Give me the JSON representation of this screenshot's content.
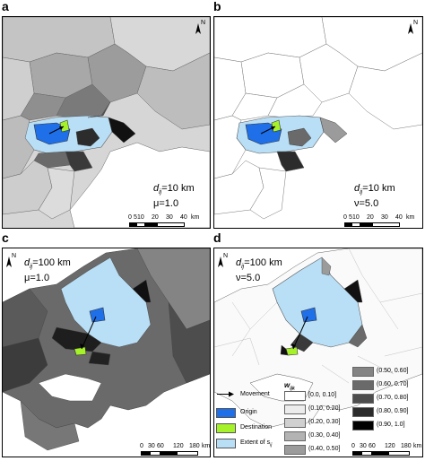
{
  "panels": [
    {
      "letter": "a",
      "param_name": "d",
      "param_sub": "ij",
      "param_value": "=10 km",
      "param2_symbol": "μ",
      "param2_value": "=1.0",
      "scale_ticks": [
        "0",
        "5",
        "10",
        "20",
        "30",
        "40"
      ],
      "scale_unit": "km"
    },
    {
      "letter": "b",
      "param_name": "d",
      "param_sub": "ij",
      "param_value": "=10 km",
      "param2_symbol": "ν",
      "param2_value": "=5.0",
      "scale_ticks": [
        "0",
        "5",
        "10",
        "20",
        "30",
        "40"
      ],
      "scale_unit": "km"
    },
    {
      "letter": "c",
      "param_name": "d",
      "param_sub": "ij",
      "param_value": "=100 km",
      "param2_symbol": "μ",
      "param2_value": "=1.0",
      "scale_ticks": [
        "0",
        "30",
        "60",
        "120",
        "180"
      ],
      "scale_unit": "km"
    },
    {
      "letter": "d",
      "param_name": "d",
      "param_sub": "ij",
      "param_value": "=100 km",
      "param2_symbol": "ν",
      "param2_value": "=5.0",
      "scale_ticks": [
        "0",
        "30",
        "60",
        "120",
        "180"
      ],
      "scale_unit": "km"
    }
  ],
  "north_label": "N",
  "legend": {
    "items": [
      {
        "label": "Movement",
        "kind": "arrow"
      },
      {
        "label": "Origin",
        "color": "#1f6fe8"
      },
      {
        "label": "Destination",
        "color": "#a6f22a"
      },
      {
        "label": "Extent of s",
        "label_sub": "ij",
        "color": "#b9dff6"
      }
    ],
    "weight_title": "w",
    "weight_title_sub": "ijk",
    "weight_classes": [
      {
        "label": "[0.0, 0.10]",
        "color": "#ffffff"
      },
      {
        "label": "(0.10, 0.20]",
        "color": "#ececec"
      },
      {
        "label": "(0.20, 0.30]",
        "color": "#d0d0d0"
      },
      {
        "label": "(0.30, 0.40]",
        "color": "#b3b3b3"
      },
      {
        "label": "(0.40, 0.50]",
        "color": "#9b9b9b"
      },
      {
        "label": "(0.50, 0.60]",
        "color": "#848484"
      },
      {
        "label": "(0.60, 0.70]",
        "color": "#6a6a6a"
      },
      {
        "label": "(0.70, 0.80]",
        "color": "#4d4d4d"
      },
      {
        "label": "(0.80, 0.90]",
        "color": "#2c2c2c"
      },
      {
        "label": "(0.90, 1.0]",
        "color": "#000000"
      }
    ]
  }
}
